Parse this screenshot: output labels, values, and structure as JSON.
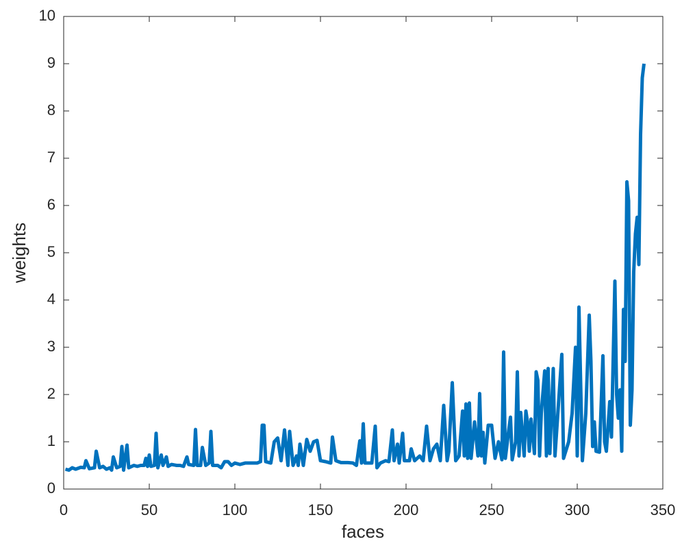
{
  "chart_data": {
    "type": "line",
    "xlabel": "faces",
    "ylabel": "weights",
    "color": "#0072bd",
    "xlim": [
      0,
      350
    ],
    "xticks": [
      0,
      50,
      100,
      150,
      200,
      250,
      300,
      350
    ],
    "ylim": [
      0,
      10
    ],
    "yticks": [
      0,
      1,
      2,
      3,
      4,
      5,
      6,
      7,
      8,
      9,
      10
    ],
    "x": [
      1,
      3,
      5,
      7,
      10,
      12,
      13,
      15,
      18,
      19,
      21,
      23,
      25,
      27,
      28,
      29,
      31,
      33,
      34,
      35,
      37,
      38,
      41,
      43,
      45,
      47,
      48,
      49,
      50,
      51,
      53,
      54,
      55,
      57,
      58,
      60,
      61,
      63,
      66,
      68,
      70,
      72,
      73,
      76,
      77,
      78,
      80,
      81,
      83,
      85,
      86,
      87,
      90,
      92,
      94,
      96,
      98,
      100,
      103,
      106,
      110,
      113,
      115,
      116,
      117,
      118,
      121,
      123,
      125,
      127,
      129,
      131,
      132,
      134,
      136,
      137,
      138,
      140,
      142,
      144,
      146,
      148,
      150,
      153,
      156,
      157,
      159,
      162,
      166,
      169,
      171,
      173,
      174,
      175,
      176,
      180,
      182,
      183,
      185,
      188,
      190,
      192,
      193,
      195,
      196,
      198,
      199,
      202,
      203,
      205,
      208,
      210,
      212,
      214,
      216,
      218,
      220,
      222,
      224,
      225,
      227,
      229,
      231,
      233,
      234,
      235,
      236,
      237,
      238,
      240,
      242,
      243,
      244,
      245,
      246,
      248,
      250,
      252,
      254,
      256,
      257,
      258,
      260,
      261,
      262,
      264,
      265,
      266,
      267,
      269,
      270,
      271,
      272,
      273,
      275,
      276,
      277,
      278,
      279,
      281,
      282,
      283,
      284,
      286,
      287,
      291,
      292,
      295,
      297,
      299,
      300,
      301,
      303,
      305,
      307,
      308,
      309,
      310,
      311,
      313,
      315,
      316,
      317,
      319,
      320,
      322,
      323,
      324,
      325,
      326,
      327,
      328,
      329,
      330,
      331,
      332,
      333,
      334,
      335,
      336,
      337,
      338,
      339
    ],
    "values": [
      0.42,
      0.4,
      0.45,
      0.42,
      0.46,
      0.45,
      0.6,
      0.43,
      0.45,
      0.8,
      0.45,
      0.48,
      0.42,
      0.45,
      0.4,
      0.68,
      0.45,
      0.48,
      0.9,
      0.4,
      0.93,
      0.45,
      0.5,
      0.48,
      0.5,
      0.5,
      0.65,
      0.48,
      0.72,
      0.48,
      0.5,
      1.18,
      0.45,
      0.72,
      0.5,
      0.68,
      0.48,
      0.52,
      0.5,
      0.5,
      0.48,
      0.68,
      0.52,
      0.5,
      1.26,
      0.5,
      0.5,
      0.88,
      0.5,
      0.55,
      1.22,
      0.5,
      0.5,
      0.45,
      0.58,
      0.58,
      0.5,
      0.55,
      0.52,
      0.55,
      0.55,
      0.55,
      0.58,
      1.35,
      1.35,
      0.58,
      0.55,
      1.0,
      1.08,
      0.6,
      1.25,
      0.5,
      1.22,
      0.5,
      0.7,
      0.5,
      0.95,
      0.5,
      1.05,
      0.8,
      1.0,
      1.03,
      0.6,
      0.58,
      0.55,
      1.1,
      0.6,
      0.56,
      0.56,
      0.55,
      0.5,
      1.02,
      0.55,
      1.38,
      0.55,
      0.55,
      1.33,
      0.45,
      0.55,
      0.6,
      0.58,
      1.25,
      0.6,
      0.95,
      0.55,
      1.18,
      0.6,
      0.6,
      0.85,
      0.6,
      0.7,
      0.6,
      1.33,
      0.6,
      0.85,
      0.95,
      0.6,
      1.77,
      0.6,
      0.8,
      2.25,
      0.6,
      0.7,
      1.65,
      0.7,
      1.8,
      0.65,
      1.82,
      0.65,
      1.42,
      0.7,
      2.02,
      0.7,
      1.2,
      0.55,
      1.35,
      1.35,
      0.65,
      1.0,
      0.62,
      2.9,
      0.65,
      1.25,
      1.52,
      0.62,
      1.0,
      2.48,
      0.7,
      1.62,
      0.7,
      1.65,
      1.4,
      0.8,
      1.48,
      0.75,
      2.48,
      2.3,
      0.7,
      1.6,
      2.5,
      0.7,
      2.55,
      0.75,
      2.55,
      0.7,
      2.85,
      0.65,
      1.0,
      1.6,
      3.0,
      0.7,
      3.85,
      0.6,
      1.6,
      3.68,
      2.7,
      0.9,
      1.42,
      0.8,
      0.78,
      2.82,
      1.0,
      0.8,
      1.85,
      1.1,
      4.4,
      2.0,
      1.5,
      2.1,
      0.8,
      3.8,
      2.7,
      6.5,
      6.1,
      1.35,
      2.1,
      4.6,
      5.4,
      5.75,
      4.75,
      7.5,
      8.7,
      9.0
    ]
  }
}
